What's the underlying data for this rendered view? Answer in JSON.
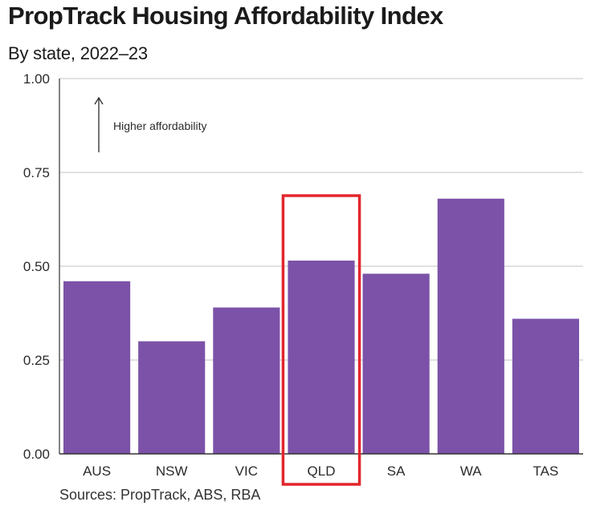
{
  "title": "PropTrack Housing Affordability Index",
  "subtitle": "By state, 2022–23",
  "source": "Sources: PropTrack, ABS, RBA",
  "annotation": "Higher affordability",
  "highlight": "QLD",
  "colors": {
    "bar": "#7b52a8",
    "highlight_box": "#e3262d",
    "grid": "#cfcfcf",
    "axis": "#333333"
  },
  "chart_data": {
    "type": "bar",
    "title": "PropTrack Housing Affordability Index",
    "subtitle": "By state, 2022–23",
    "xlabel": "",
    "ylabel": "",
    "categories": [
      "AUS",
      "NSW",
      "VIC",
      "QLD",
      "SA",
      "WA",
      "TAS"
    ],
    "values": [
      0.46,
      0.3,
      0.39,
      0.515,
      0.48,
      0.68,
      0.36
    ],
    "ylim": [
      0,
      1
    ],
    "yticks": [
      "0.00",
      "0.25",
      "0.50",
      "0.75",
      "1.00"
    ],
    "grid": true,
    "legend": "none"
  }
}
